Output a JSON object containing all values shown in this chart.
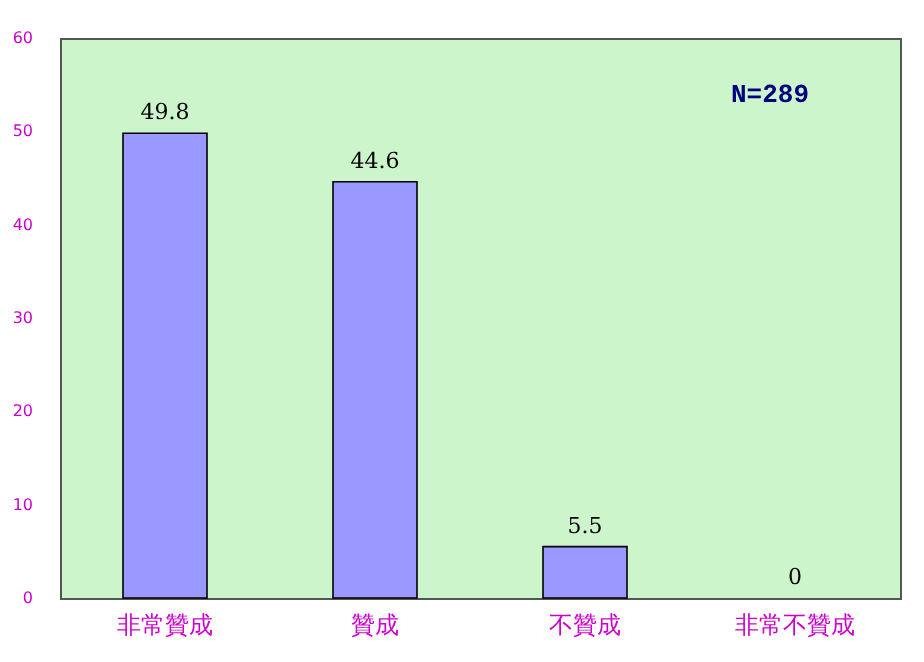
{
  "chart_data": {
    "type": "bar",
    "categories": [
      "非常贊成",
      "贊成",
      "不贊成",
      "非常不贊成"
    ],
    "values": [
      49.8,
      44.6,
      5.5,
      0
    ],
    "color": "#9999ff",
    "ylim": [
      0,
      60
    ],
    "yticks": [
      0,
      10,
      20,
      30,
      40,
      50,
      60
    ],
    "grid": false,
    "data_labels": true,
    "annotations": [
      "N=289"
    ]
  }
}
